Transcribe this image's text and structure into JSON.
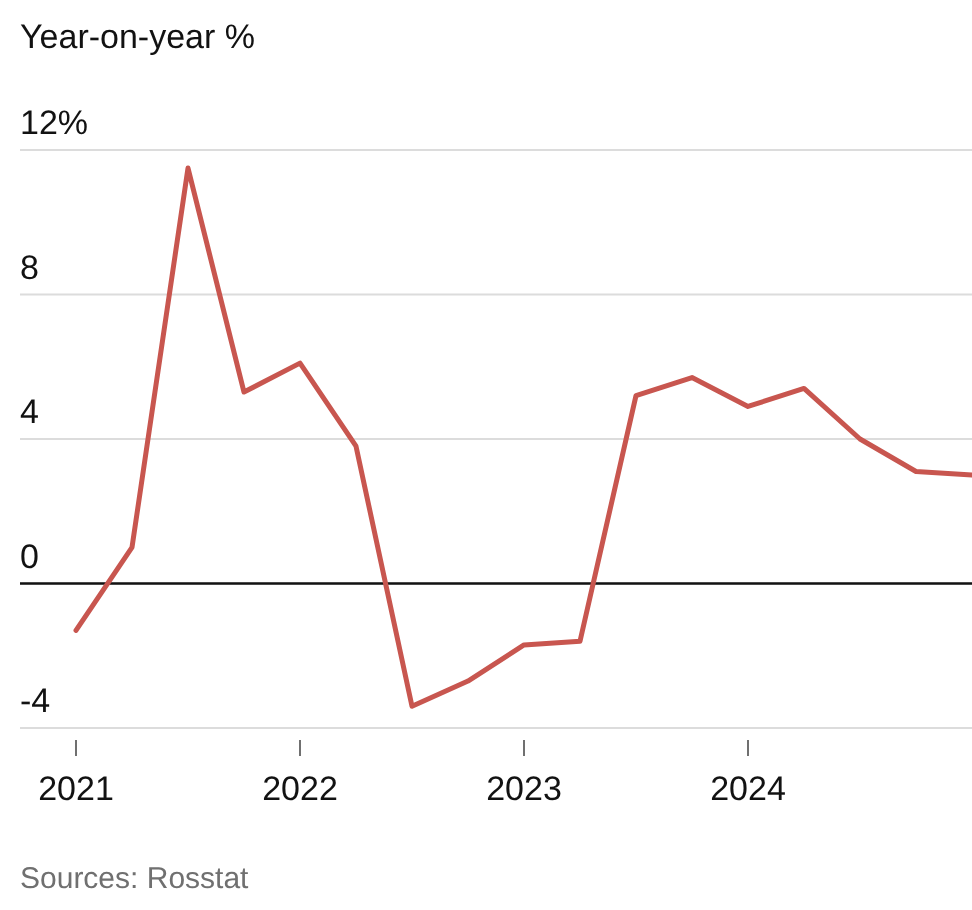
{
  "chart_data": {
    "type": "line",
    "title": "Year-on-year %",
    "annotations": [
      "Sources: Rosstat"
    ],
    "x": [
      2021,
      2021.25,
      2021.5,
      2021.75,
      2022,
      2022.25,
      2022.5,
      2022.75,
      2023,
      2023.25,
      2023.5,
      2023.75,
      2024,
      2024.25,
      2024.5,
      2024.75,
      2025
    ],
    "series": [
      {
        "color": "#c8564f",
        "values": [
          -1.3,
          1.0,
          11.5,
          5.3,
          6.1,
          3.8,
          -3.4,
          -2.7,
          -1.7,
          -1.6,
          5.2,
          5.7,
          4.9,
          5.4,
          4.0,
          3.1,
          3.0
        ]
      }
    ],
    "xlim": [
      2020.75,
      2025
    ],
    "xticks": [
      2021,
      2022,
      2023,
      2024
    ],
    "ylim": [
      -4,
      12
    ],
    "yticks": [
      -4,
      0,
      4,
      8,
      {
        "value": 12,
        "label": "12%"
      }
    ],
    "grid": "y",
    "marker": "none",
    "line_style": "solid",
    "ref_lines": [
      {
        "axis": "y",
        "value": 0,
        "color": "#121212"
      }
    ]
  }
}
